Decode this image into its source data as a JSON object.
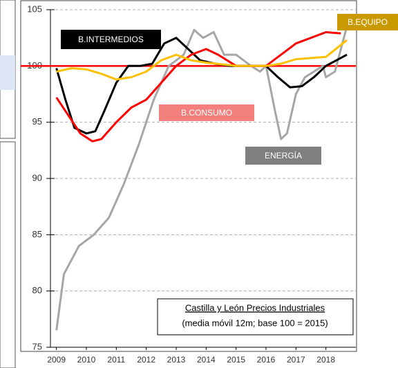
{
  "chart_data": {
    "type": "line",
    "annotation": {
      "title": "Castilla y León Precios Industriales",
      "subtitle": "(media móvil 12m; base 100 = 2015)"
    },
    "xlim": [
      2008.8,
      2019.0
    ],
    "xticks": [
      2009,
      2010,
      2011,
      2012,
      2013,
      2014,
      2015,
      2016,
      2017,
      2018
    ],
    "ylim": [
      75,
      105
    ],
    "yticks": [
      75,
      80,
      85,
      90,
      95,
      100,
      105
    ],
    "grid": true,
    "reference_line": {
      "value": 100,
      "color": "#ff0000"
    },
    "series": [
      {
        "name": "ENERGÍA",
        "color": "#a6a6a6",
        "label_color": "#7f7f7f",
        "x": [
          2009.0,
          2009.25,
          2009.75,
          2010.25,
          2010.75,
          2011.25,
          2011.75,
          2012.25,
          2012.75,
          2013.25,
          2013.6,
          2013.9,
          2014.25,
          2014.6,
          2015.0,
          2015.5,
          2015.8,
          2016.0,
          2016.3,
          2016.5,
          2016.7,
          2017.0,
          2017.3,
          2017.6,
          2017.9,
          2018.0,
          2018.3,
          2018.7
        ],
        "values": [
          76.5,
          81.5,
          84,
          85,
          86.5,
          89.5,
          93,
          97,
          100,
          101,
          103.2,
          102.5,
          103,
          101,
          101,
          100,
          99.5,
          100,
          96,
          93.5,
          94,
          97.5,
          99,
          99.5,
          100,
          99,
          99.5,
          103.5
        ]
      },
      {
        "name": "B.INTERMEDIOS",
        "color": "#000000",
        "label_color": "#000000",
        "x": [
          2009.0,
          2009.3,
          2009.6,
          2010.0,
          2010.3,
          2010.6,
          2011.0,
          2011.4,
          2011.8,
          2012.2,
          2012.6,
          2013.0,
          2013.4,
          2013.8,
          2014.3,
          2014.8,
          2015.5,
          2016.0,
          2016.4,
          2016.8,
          2017.2,
          2017.6,
          2018.0,
          2018.7
        ],
        "values": [
          99.8,
          97,
          94.5,
          94,
          94.2,
          96,
          98.5,
          100,
          100,
          100.2,
          102,
          102.5,
          101.5,
          100.5,
          100.2,
          100,
          100,
          100,
          99,
          98.1,
          98.2,
          99,
          100,
          101
        ]
      },
      {
        "name": "B.CONSUMO",
        "color": "#ff0000",
        "label_color": "#f4807e",
        "x": [
          2009.0,
          2009.3,
          2009.8,
          2010.2,
          2010.5,
          2011.0,
          2011.5,
          2012.0,
          2012.5,
          2013.0,
          2013.5,
          2014.0,
          2014.4,
          2015.0,
          2016.0,
          2016.5,
          2017.0,
          2017.5,
          2018.0,
          2018.5
        ],
        "values": [
          97.2,
          96,
          94,
          93.3,
          93.5,
          95,
          96.3,
          97,
          98.5,
          100,
          101,
          101.5,
          101,
          100,
          100,
          101,
          102,
          102.5,
          103,
          102.9
        ]
      },
      {
        "name": "B.EQUIPO",
        "color": "#ffc000",
        "label_color": "#c99a00",
        "x": [
          2009.0,
          2009.5,
          2010.0,
          2010.5,
          2011.0,
          2011.5,
          2012.0,
          2012.5,
          2013.0,
          2013.5,
          2014.0,
          2015.0,
          2016.0,
          2016.5,
          2017.0,
          2017.5,
          2018.0,
          2018.7
        ],
        "values": [
          99.5,
          99.8,
          99.7,
          99.3,
          98.8,
          99,
          99.5,
          100.5,
          101,
          100.5,
          100.3,
          100,
          100,
          100.2,
          100.6,
          100.7,
          100.8,
          102.3
        ]
      }
    ]
  }
}
